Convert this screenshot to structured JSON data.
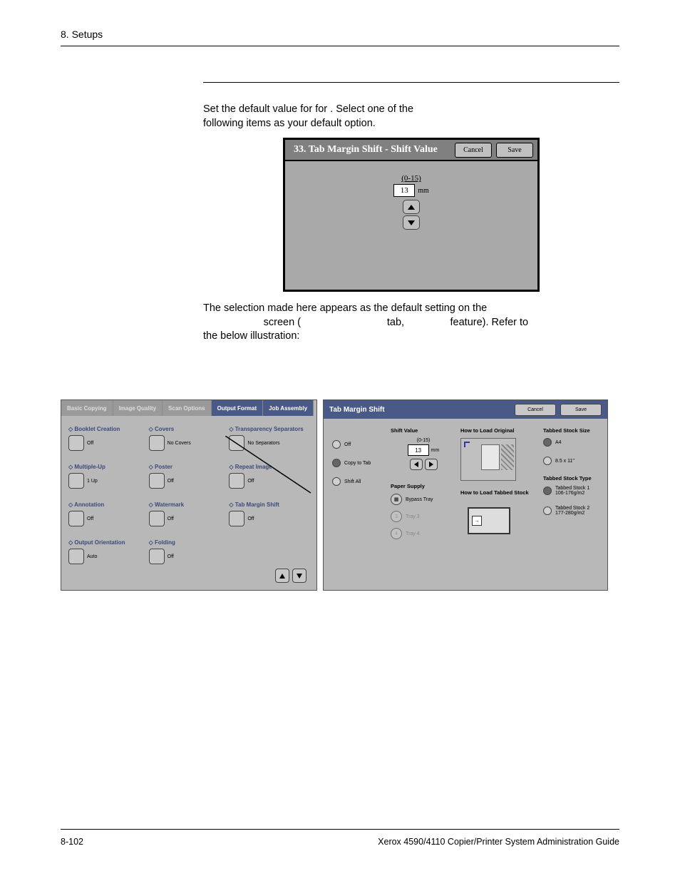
{
  "header": {
    "title": "8. Setups"
  },
  "intro": {
    "line1_a": "Set the default value for ",
    "line1_b": " for ",
    "line1_c": ".  Select one of the",
    "line2": "following items as your default option."
  },
  "dialog1": {
    "title": "33. Tab Margin Shift - Shift Value",
    "cancel": "Cancel",
    "save": "Save",
    "range": "(0-15)",
    "value": "13",
    "unit": "mm"
  },
  "para2": {
    "l1": "The selection made here appears as the default setting on the ",
    "l2a": " screen (",
    "l2b": " tab, ",
    "l2c": " feature).  Refer to",
    "l3": "the below illustration:"
  },
  "output_format": {
    "tabs": [
      "Basic Copying",
      "Image Quality",
      "Scan Options",
      "Output Format",
      "Job Assembly"
    ],
    "items": [
      {
        "label": "Booklet Creation",
        "value": "Off"
      },
      {
        "label": "Covers",
        "value": "No Covers"
      },
      {
        "label": "Transparency Separators",
        "value": "No Separators"
      },
      {
        "label": "Multiple-Up",
        "value": "1 Up"
      },
      {
        "label": "Poster",
        "value": "Off"
      },
      {
        "label": "Repeat Image",
        "value": "Off"
      },
      {
        "label": "Annotation",
        "value": "Off"
      },
      {
        "label": "Watermark",
        "value": "Off"
      },
      {
        "label": "Tab Margin Shift",
        "value": "Off"
      },
      {
        "label": "Output Orientation",
        "value": "Auto"
      },
      {
        "label": "Folding",
        "value": "Off"
      }
    ]
  },
  "tab_shift": {
    "title": "Tab Margin Shift",
    "cancel": "Cancel",
    "save": "Save",
    "col1_options": [
      "Off",
      "Copy to Tab",
      "Shift All"
    ],
    "col2": {
      "head": "Shift Value",
      "range": "(0-15)",
      "value": "13",
      "unit": "mm",
      "paper_supply": "Paper Supply",
      "trays": [
        {
          "label": "Bypass Tray",
          "enabled": true
        },
        {
          "label": "Tray 3",
          "enabled": false
        },
        {
          "label": "Tray 4",
          "enabled": false
        }
      ]
    },
    "col3": {
      "head1": "How to Load Original",
      "head2": "How to Load Tabbed Stock"
    },
    "col4": {
      "head1": "Tabbed Stock Size",
      "sizes": [
        "A4",
        "8.5 x 11\""
      ],
      "head2": "Tabbed Stock Type",
      "types": [
        "Tabbed Stock 1\n106-176g/m2",
        "Tabbed Stock 2\n177-280g/m2"
      ]
    }
  },
  "footer": {
    "page": "8-102",
    "doc": "Xerox 4590/4110 Copier/Printer System Administration Guide"
  }
}
